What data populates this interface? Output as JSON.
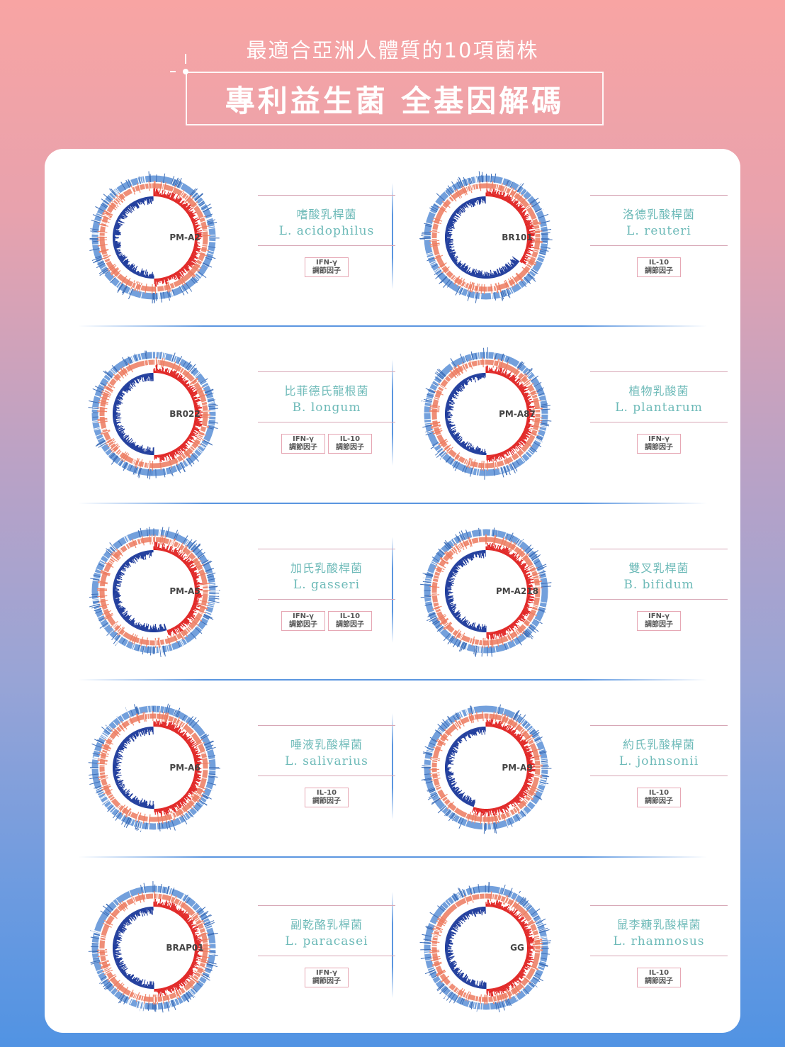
{
  "header": {
    "subtitle": "最適合亞洲人體質的10項菌株",
    "title": "專利益生菌 全基因解碼"
  },
  "colors": {
    "accent_teal": "#6dbab8",
    "ring_blue": "#5b8fd6",
    "ring_orange": "#ec7a5f",
    "skew_red": "#e0201f",
    "skew_blue": "#1f3c9c"
  },
  "strains": [
    {
      "code": "PM-A2",
      "chinese": "嗜酸乳桿菌",
      "latin": "L. acidophilus",
      "badges": [
        {
          "line1": "IFN-γ",
          "line2": "調節因子"
        }
      ]
    },
    {
      "code": "BR101",
      "chinese": "洛德乳酸桿菌",
      "latin": "L. reuteri",
      "badges": [
        {
          "line1": "IL-10",
          "line2": "調節因子"
        }
      ]
    },
    {
      "code": "BR022",
      "chinese": "比菲德氏龍根菌",
      "latin": "B. longum",
      "badges": [
        {
          "line1": "IFN-γ",
          "line2": "調節因子"
        },
        {
          "line1": "IL-10",
          "line2": "調節因子"
        }
      ]
    },
    {
      "code": "PM-A87",
      "chinese": "植物乳酸菌",
      "latin": "L. plantarum",
      "badges": [
        {
          "line1": "IFN-γ",
          "line2": "調節因子"
        }
      ]
    },
    {
      "code": "PM-A5",
      "chinese": "加氏乳酸桿菌",
      "latin": "L. gasseri",
      "badges": [
        {
          "line1": "IFN-γ",
          "line2": "調節因子"
        },
        {
          "line1": "IL-10",
          "line2": "調節因子"
        }
      ]
    },
    {
      "code": "PM-A218",
      "chinese": "雙叉乳桿菌",
      "latin": "B. bifidum",
      "badges": [
        {
          "line1": "IFN-γ",
          "line2": "調節因子"
        }
      ]
    },
    {
      "code": "PM-A6",
      "chinese": "唾液乳酸桿菌",
      "latin": "L. salivarius",
      "badges": [
        {
          "line1": "IL-10",
          "line2": "調節因子"
        }
      ]
    },
    {
      "code": "PM-A9",
      "chinese": "約氏乳酸桿菌",
      "latin": "L. johnsonii",
      "badges": [
        {
          "line1": "IL-10",
          "line2": "調節因子"
        }
      ]
    },
    {
      "code": "BRAP01",
      "chinese": "副乾酪乳桿菌",
      "latin": "L. paracasei",
      "badges": [
        {
          "line1": "IFN-γ",
          "line2": "調節因子"
        }
      ]
    },
    {
      "code": "GG",
      "chinese": "鼠李糖乳酸桿菌",
      "latin": "L. rhamnosus",
      "badges": [
        {
          "line1": "IL-10",
          "line2": "調節因子"
        }
      ]
    }
  ]
}
